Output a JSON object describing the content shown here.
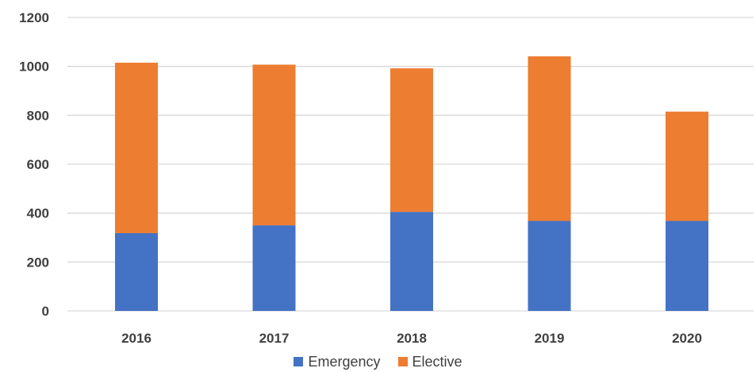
{
  "chart_data": {
    "type": "bar",
    "stacked": true,
    "categories": [
      "2016",
      "2017",
      "2018",
      "2019",
      "2020"
    ],
    "series": [
      {
        "name": "Emergency",
        "color": "#4472C4",
        "values": [
          318,
          350,
          405,
          368,
          368
        ]
      },
      {
        "name": "Elective",
        "color": "#ED7D31",
        "values": [
          697,
          657,
          587,
          673,
          447
        ]
      }
    ],
    "ylim": [
      0,
      1200
    ],
    "yticks": [
      0,
      200,
      400,
      600,
      800,
      1000,
      1200
    ],
    "ytick_labels": [
      "0",
      "200",
      "400",
      "600",
      "800",
      "1000",
      "1200"
    ],
    "grid": true,
    "legend_position": "bottom-center",
    "title": "",
    "xlabel": "",
    "ylabel": ""
  }
}
